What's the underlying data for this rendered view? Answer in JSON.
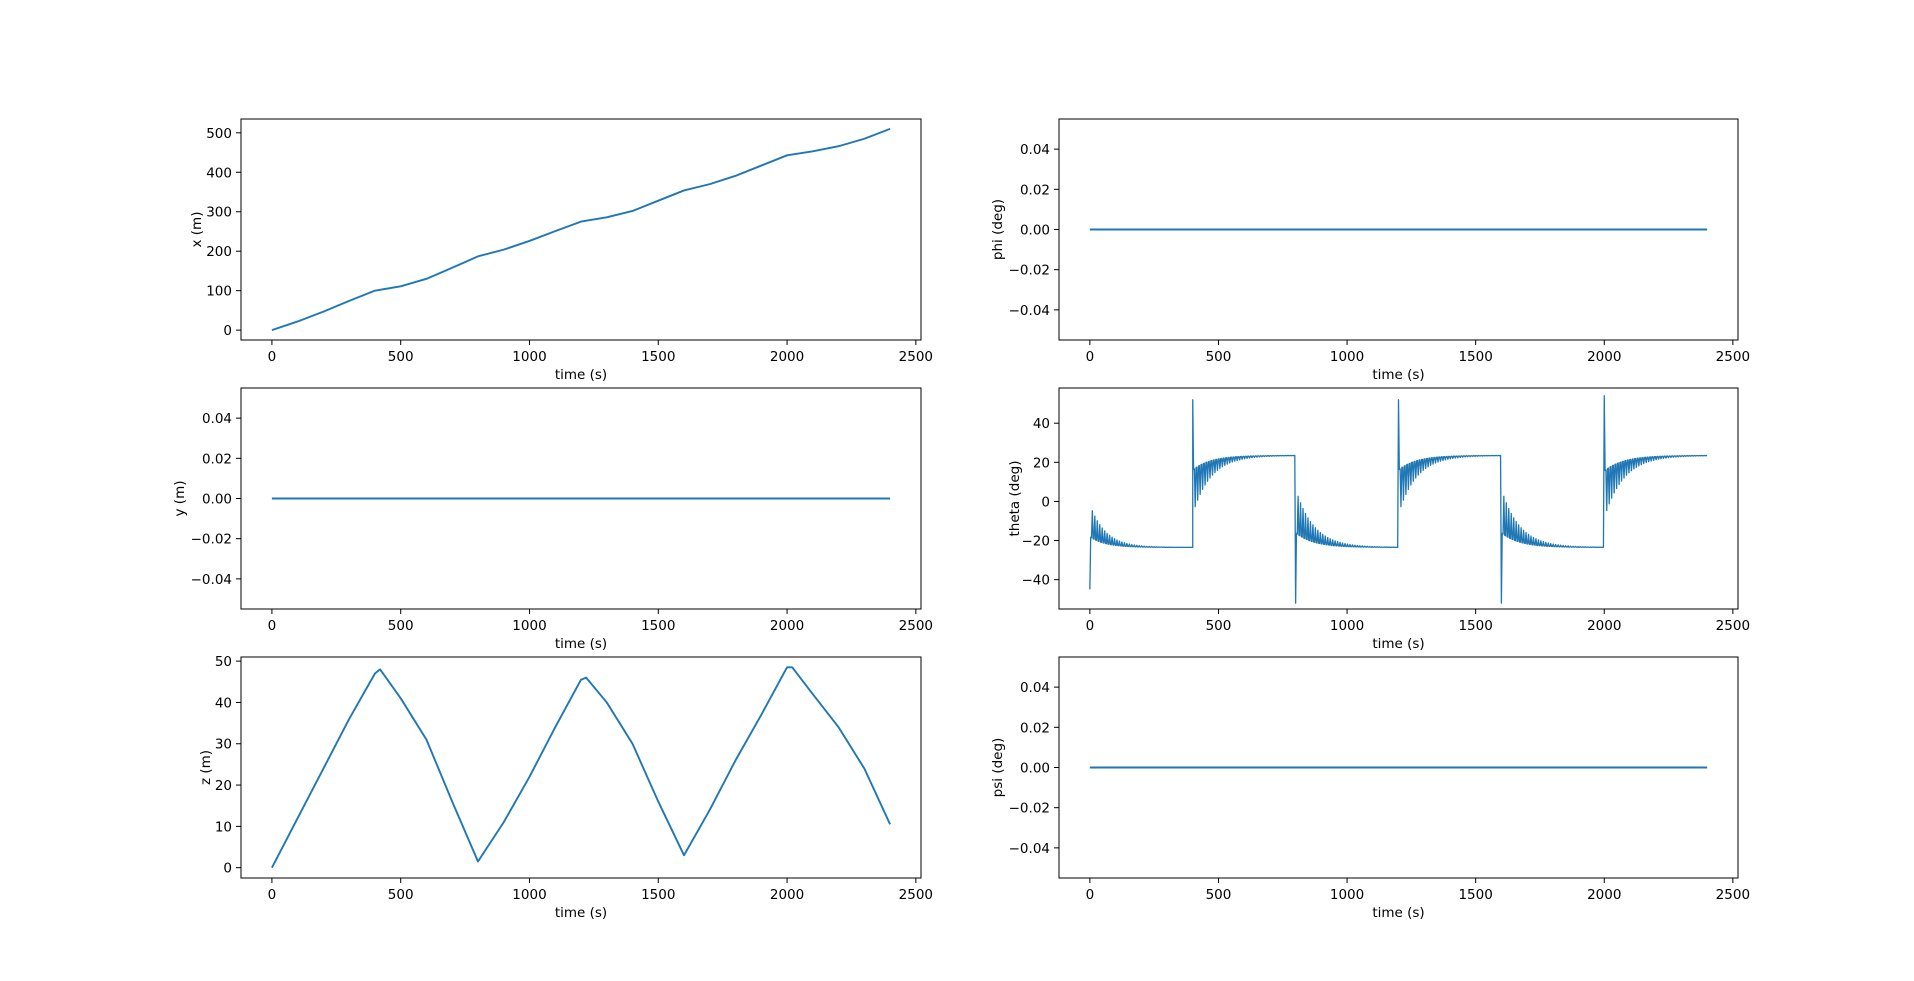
{
  "chart_data": [
    {
      "type": "line",
      "xlabel": "time (s)",
      "ylabel": "x (m)",
      "xlim": [
        -120,
        2520
      ],
      "ylim": [
        -25,
        535
      ],
      "xticks": [
        0,
        500,
        1000,
        1500,
        2000,
        2500
      ],
      "yticks": [
        0,
        100,
        200,
        300,
        400,
        500
      ],
      "ytick_labels": [
        "0",
        "100",
        "200",
        "300",
        "400",
        "500"
      ],
      "color": "#1f77b4",
      "series": [
        {
          "x": [
            0,
            100,
            200,
            300,
            400,
            500,
            600,
            700,
            800,
            900,
            1000,
            1100,
            1200,
            1300,
            1400,
            1500,
            1600,
            1700,
            1800,
            1900,
            2000,
            2100,
            2200,
            2300,
            2400
          ],
          "y": [
            0,
            22,
            47,
            74,
            100,
            111,
            130,
            158,
            187,
            204,
            226,
            251,
            275,
            286,
            302,
            328,
            354,
            370,
            391,
            417,
            443,
            453,
            466,
            485,
            510
          ]
        }
      ]
    },
    {
      "type": "line",
      "xlabel": "time (s)",
      "ylabel": "phi (deg)",
      "xlim": [
        -120,
        2520
      ],
      "ylim": [
        -0.055,
        0.055
      ],
      "xticks": [
        0,
        500,
        1000,
        1500,
        2000,
        2500
      ],
      "yticks": [
        -0.04,
        -0.02,
        0.0,
        0.02,
        0.04
      ],
      "ytick_labels": [
        "−0.04",
        "−0.02",
        "0.00",
        "0.02",
        "0.04"
      ],
      "color": "#1f77b4",
      "series": [
        {
          "x": [
            0,
            2400
          ],
          "y": [
            0,
            0
          ]
        }
      ]
    },
    {
      "type": "line",
      "xlabel": "time (s)",
      "ylabel": "y (m)",
      "xlim": [
        -120,
        2520
      ],
      "ylim": [
        -0.055,
        0.055
      ],
      "xticks": [
        0,
        500,
        1000,
        1500,
        2000,
        2500
      ],
      "yticks": [
        -0.04,
        -0.02,
        0.0,
        0.02,
        0.04
      ],
      "ytick_labels": [
        "−0.04",
        "−0.02",
        "0.00",
        "0.02",
        "0.04"
      ],
      "color": "#1f77b4",
      "series": [
        {
          "x": [
            0,
            2400
          ],
          "y": [
            0,
            0
          ]
        }
      ]
    },
    {
      "type": "line",
      "xlabel": "time (s)",
      "ylabel": "theta (deg)",
      "xlim": [
        -120,
        2520
      ],
      "ylim": [
        -55,
        58
      ],
      "xticks": [
        0,
        500,
        1000,
        1500,
        2000,
        2500
      ],
      "yticks": [
        -40,
        -20,
        0,
        20,
        40
      ],
      "ytick_labels": [
        "−40",
        "−20",
        "0",
        "20",
        "40"
      ],
      "color": "#1f77b4",
      "series": [
        {
          "name": "",
          "segments": [
            {
              "t0": 0,
              "t1": 400,
              "start": -45,
              "steady": -23.5,
              "amp": 22,
              "decay": 60
            },
            {
              "t0": 400,
              "t1": 800,
              "start": 52,
              "steady": 23.5,
              "amp": 30,
              "decay": 70
            },
            {
              "t0": 800,
              "t1": 1200,
              "start": -52,
              "steady": -23.5,
              "amp": 30,
              "decay": 70
            },
            {
              "t0": 1200,
              "t1": 1600,
              "start": 52,
              "steady": 23.5,
              "amp": 30,
              "decay": 70
            },
            {
              "t0": 1600,
              "t1": 2000,
              "start": -52,
              "steady": -23.5,
              "amp": 30,
              "decay": 70
            },
            {
              "t0": 2000,
              "t1": 2400,
              "start": 54,
              "steady": 23.5,
              "amp": 32,
              "decay": 75
            }
          ]
        }
      ]
    },
    {
      "type": "line",
      "xlabel": "time (s)",
      "ylabel": "z (m)",
      "xlim": [
        -120,
        2520
      ],
      "ylim": [
        -2.5,
        51
      ],
      "xticks": [
        0,
        500,
        1000,
        1500,
        2000,
        2500
      ],
      "yticks": [
        0,
        10,
        20,
        30,
        40,
        50
      ],
      "ytick_labels": [
        "0",
        "10",
        "20",
        "30",
        "40",
        "50"
      ],
      "color": "#1f77b4",
      "series": [
        {
          "x": [
            0,
            100,
            200,
            300,
            400,
            420,
            500,
            600,
            700,
            800,
            900,
            1000,
            1100,
            1200,
            1220,
            1300,
            1400,
            1500,
            1600,
            1700,
            1800,
            1900,
            2000,
            2020,
            2100,
            2200,
            2300,
            2400
          ],
          "y": [
            0,
            12,
            24,
            36,
            47,
            48,
            41,
            31,
            16,
            1.5,
            11,
            22,
            34,
            45.5,
            46,
            40,
            30,
            16,
            3,
            14,
            26,
            37,
            48.5,
            48.5,
            42,
            34,
            24,
            10.5
          ]
        }
      ]
    },
    {
      "type": "line",
      "xlabel": "time (s)",
      "ylabel": "psi (deg)",
      "xlim": [
        -120,
        2520
      ],
      "ylim": [
        -0.055,
        0.055
      ],
      "xticks": [
        0,
        500,
        1000,
        1500,
        2000,
        2500
      ],
      "yticks": [
        -0.04,
        -0.02,
        0.0,
        0.02,
        0.04
      ],
      "ytick_labels": [
        "−0.04",
        "−0.02",
        "0.00",
        "0.02",
        "0.04"
      ],
      "color": "#1f77b4",
      "series": [
        {
          "x": [
            0,
            2400
          ],
          "y": [
            0,
            0
          ]
        }
      ]
    }
  ]
}
